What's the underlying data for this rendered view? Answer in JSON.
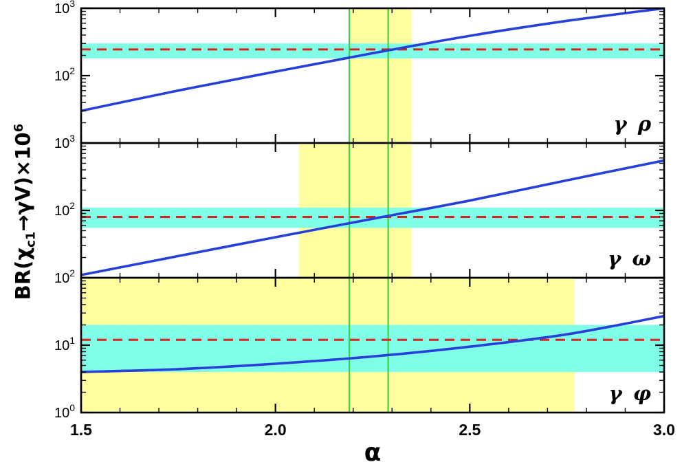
{
  "chart_data": {
    "type": "line",
    "title": "",
    "xlabel": "α",
    "ylabel": "BR(χc1→γV)×10^6",
    "ylabel_parts": {
      "prefix": "BR(χ",
      "sub": "c1",
      "mid": "→γV)×10",
      "sup": "6"
    },
    "xlim": [
      1.5,
      3.0
    ],
    "xticks": [
      {
        "value": 1.5,
        "label": "1.5"
      },
      {
        "value": 2.0,
        "label": "2.0"
      },
      {
        "value": 2.5,
        "label": "2.5"
      },
      {
        "value": 3.0,
        "label": "3.0"
      }
    ],
    "x_minor_step": 0.1,
    "green_lines_x": [
      2.19,
      2.29
    ],
    "colors": {
      "curve": "#2640d9",
      "dashed": "#d42620",
      "cyan_band": "#80ffe6",
      "yellow_band": "#ffffa0",
      "green_line": "#3fd23f",
      "frame": "#000000"
    },
    "panels": [
      {
        "label": "γ ρ",
        "ylim_exp": [
          1,
          3
        ],
        "ytick_exps": [
          3,
          2
        ],
        "curve_x": [
          1.5,
          1.75,
          2.0,
          2.25,
          2.5,
          2.75,
          3.0
        ],
        "curve_y": [
          30,
          60,
          115,
          215,
          390,
          650,
          1000
        ],
        "dashed_y": 245,
        "cyan_band_y": [
          180,
          300
        ],
        "yellow_band_x": [
          2.19,
          2.35
        ]
      },
      {
        "label": "γ ω",
        "ylim_exp": [
          1,
          3
        ],
        "ytick_exps": [
          3,
          2
        ],
        "curve_x": [
          1.5,
          1.75,
          2.0,
          2.25,
          2.5,
          2.75,
          3.0
        ],
        "curve_y": [
          11,
          21,
          40,
          75,
          140,
          280,
          550
        ],
        "dashed_y": 80,
        "cyan_band_y": [
          55,
          110
        ],
        "yellow_band_x": [
          2.06,
          2.35
        ]
      },
      {
        "label": "γ φ",
        "ylim_exp": [
          0,
          2
        ],
        "ytick_exps": [
          2,
          1,
          0
        ],
        "curve_x": [
          1.5,
          1.75,
          2.0,
          2.25,
          2.5,
          2.75,
          3.0
        ],
        "curve_y": [
          4.0,
          4.4,
          5.3,
          6.8,
          9.5,
          14.5,
          27
        ],
        "dashed_y": 12,
        "cyan_band_y": [
          4,
          20
        ],
        "yellow_band_x": [
          1.5,
          2.77
        ]
      }
    ]
  }
}
